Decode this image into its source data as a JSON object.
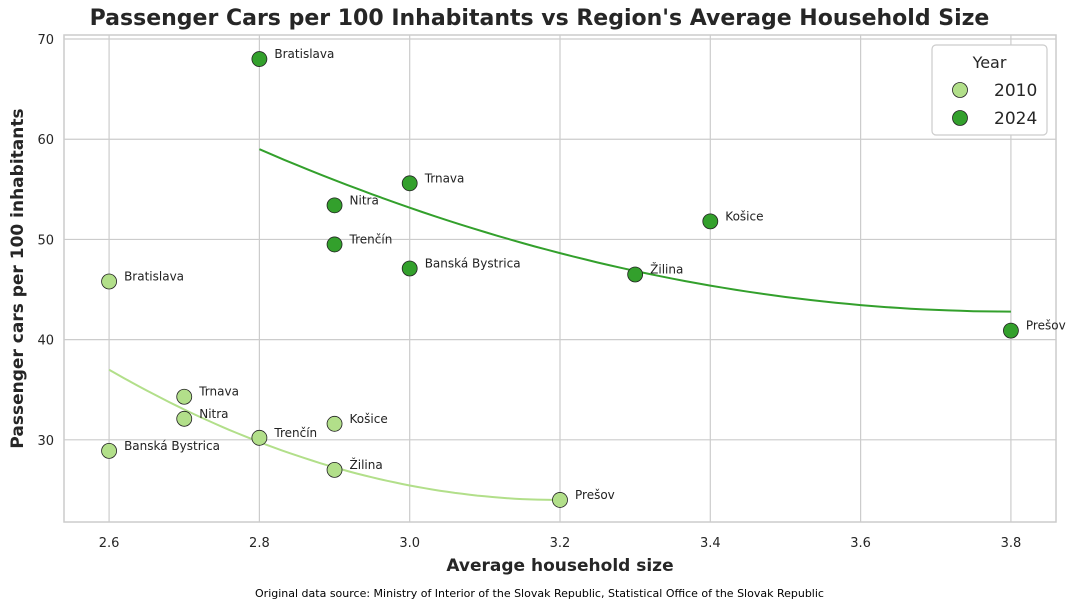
{
  "chart_data": {
    "type": "scatter",
    "title": "Passenger Cars per 100 Inhabitants vs Region's Average Household Size",
    "xlabel": "Average household size",
    "ylabel": "Passenger cars per 100 inhabitants",
    "xlim": [
      2.54,
      3.86
    ],
    "ylim": [
      21.8,
      70.4
    ],
    "xticks": [
      2.6,
      2.8,
      3.0,
      3.2,
      3.4,
      3.6,
      3.8
    ],
    "xtick_labels": [
      "2.6",
      "2.8",
      "3.0",
      "3.2",
      "3.4",
      "3.6",
      "3.8"
    ],
    "yticks": [
      30,
      40,
      50,
      60,
      70
    ],
    "ytick_labels": [
      "30",
      "40",
      "50",
      "60",
      "70"
    ],
    "grid": true,
    "legend": {
      "title": "Year",
      "placement": "top-right"
    },
    "series": [
      {
        "name": "2010",
        "color": "#b2df8a",
        "points": [
          {
            "label": "Bratislava",
            "x": 2.6,
            "y": 45.8
          },
          {
            "label": "Banská Bystrica",
            "x": 2.6,
            "y": 28.9
          },
          {
            "label": "Trnava",
            "x": 2.7,
            "y": 34.3
          },
          {
            "label": "Nitra",
            "x": 2.7,
            "y": 32.1
          },
          {
            "label": "Trenčín",
            "x": 2.8,
            "y": 30.2
          },
          {
            "label": "Košice",
            "x": 2.9,
            "y": 31.6
          },
          {
            "label": "Žilina",
            "x": 2.9,
            "y": 27.0
          },
          {
            "label": "Prešov",
            "x": 3.2,
            "y": 24.0
          }
        ],
        "trend": {
          "x_start": 2.6,
          "x_end": 3.2,
          "x_vertex": 3.2,
          "y_vertex": 24.0,
          "y_start": 37.0
        }
      },
      {
        "name": "2024",
        "color": "#33a02c",
        "points": [
          {
            "label": "Bratislava",
            "x": 2.8,
            "y": 68.0
          },
          {
            "label": "Trnava",
            "x": 3.0,
            "y": 55.6
          },
          {
            "label": "Nitra",
            "x": 2.9,
            "y": 53.4
          },
          {
            "label": "Trenčín",
            "x": 2.9,
            "y": 49.5
          },
          {
            "label": "Banská Bystrica",
            "x": 3.0,
            "y": 47.1
          },
          {
            "label": "Košice",
            "x": 3.4,
            "y": 51.8
          },
          {
            "label": "Žilina",
            "x": 3.3,
            "y": 46.5
          },
          {
            "label": "Prešov",
            "x": 3.8,
            "y": 40.9
          }
        ],
        "trend": {
          "x_start": 2.8,
          "x_end": 3.8,
          "x_vertex": 3.8,
          "y_vertex": 42.8,
          "y_start": 59.0
        }
      }
    ]
  },
  "footer": {
    "source": "Original data source: Ministry of Interior of the Slovak Republic, Statistical Office of the Slovak Republic"
  }
}
